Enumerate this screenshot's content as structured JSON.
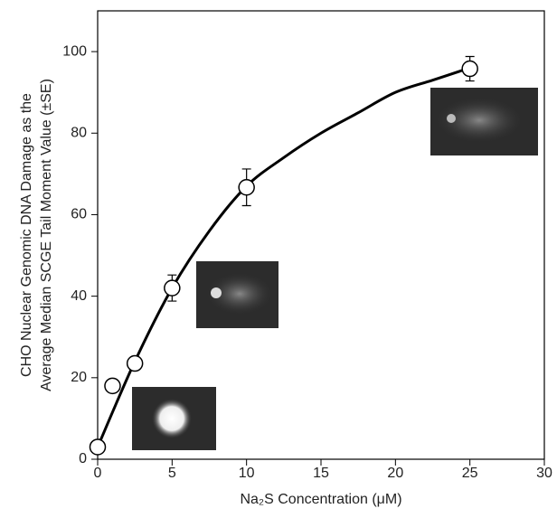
{
  "chart_data": {
    "type": "scatter",
    "xlabel": "Na₂S Concentration (μM)",
    "ylabel": [
      "CHO Nuclear Genomic DNA Damage as the",
      "Average Median SCGE Tail Moment Value (±SE)"
    ],
    "xlim": [
      0,
      30
    ],
    "ylim": [
      0,
      110
    ],
    "xticks": [
      0,
      5,
      10,
      15,
      20,
      25,
      30
    ],
    "yticks": [
      0,
      20,
      40,
      60,
      80,
      100
    ],
    "points": {
      "color": "#000000",
      "x": [
        0,
        1,
        2.5,
        5,
        10,
        25
      ],
      "values": [
        3,
        18,
        23.5,
        42,
        66.7,
        95.8
      ],
      "errors": [
        null,
        null,
        1.5,
        3.2,
        4.5,
        3
      ]
    },
    "fit": {
      "color": "#000000",
      "x": [
        0,
        2.5,
        5,
        7.5,
        10,
        12.5,
        15,
        17.5,
        20,
        22.5,
        25
      ],
      "values": [
        3,
        24,
        42,
        56,
        67,
        74,
        80,
        85,
        90,
        93,
        96
      ]
    }
  }
}
